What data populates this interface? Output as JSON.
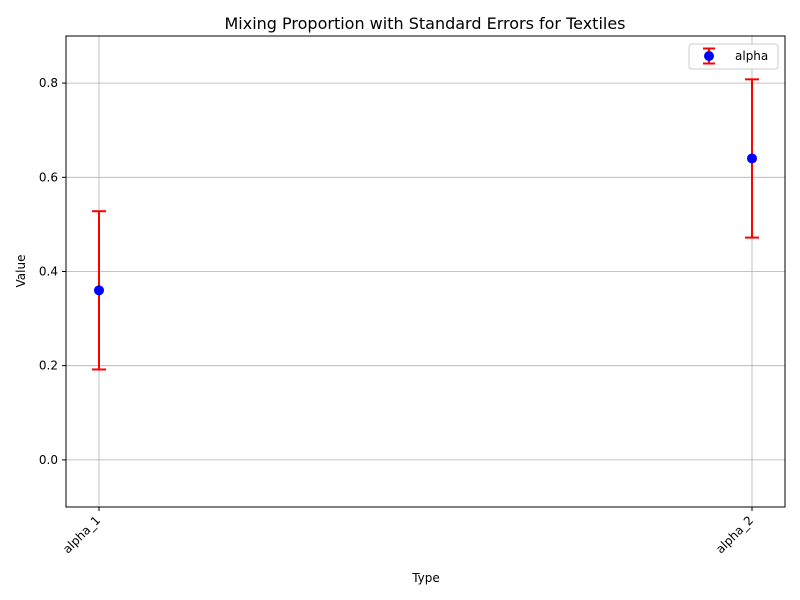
{
  "chart_data": {
    "type": "scatter",
    "title": "Mixing Proportion with Standard Errors for Textiles",
    "xlabel": "Type",
    "ylabel": "Value",
    "categories": [
      "alpha_1",
      "alpha_2"
    ],
    "series": [
      {
        "name": "alpha",
        "values": [
          0.36,
          0.64
        ],
        "errors": [
          0.168,
          0.168
        ],
        "marker_color": "#0000ff",
        "error_color": "#ff0000"
      }
    ],
    "ylim": [
      -0.1,
      0.9
    ],
    "yticks": [
      "0.0",
      "0.2",
      "0.4",
      "0.6",
      "0.8"
    ],
    "grid": true,
    "legend": "top-right"
  }
}
